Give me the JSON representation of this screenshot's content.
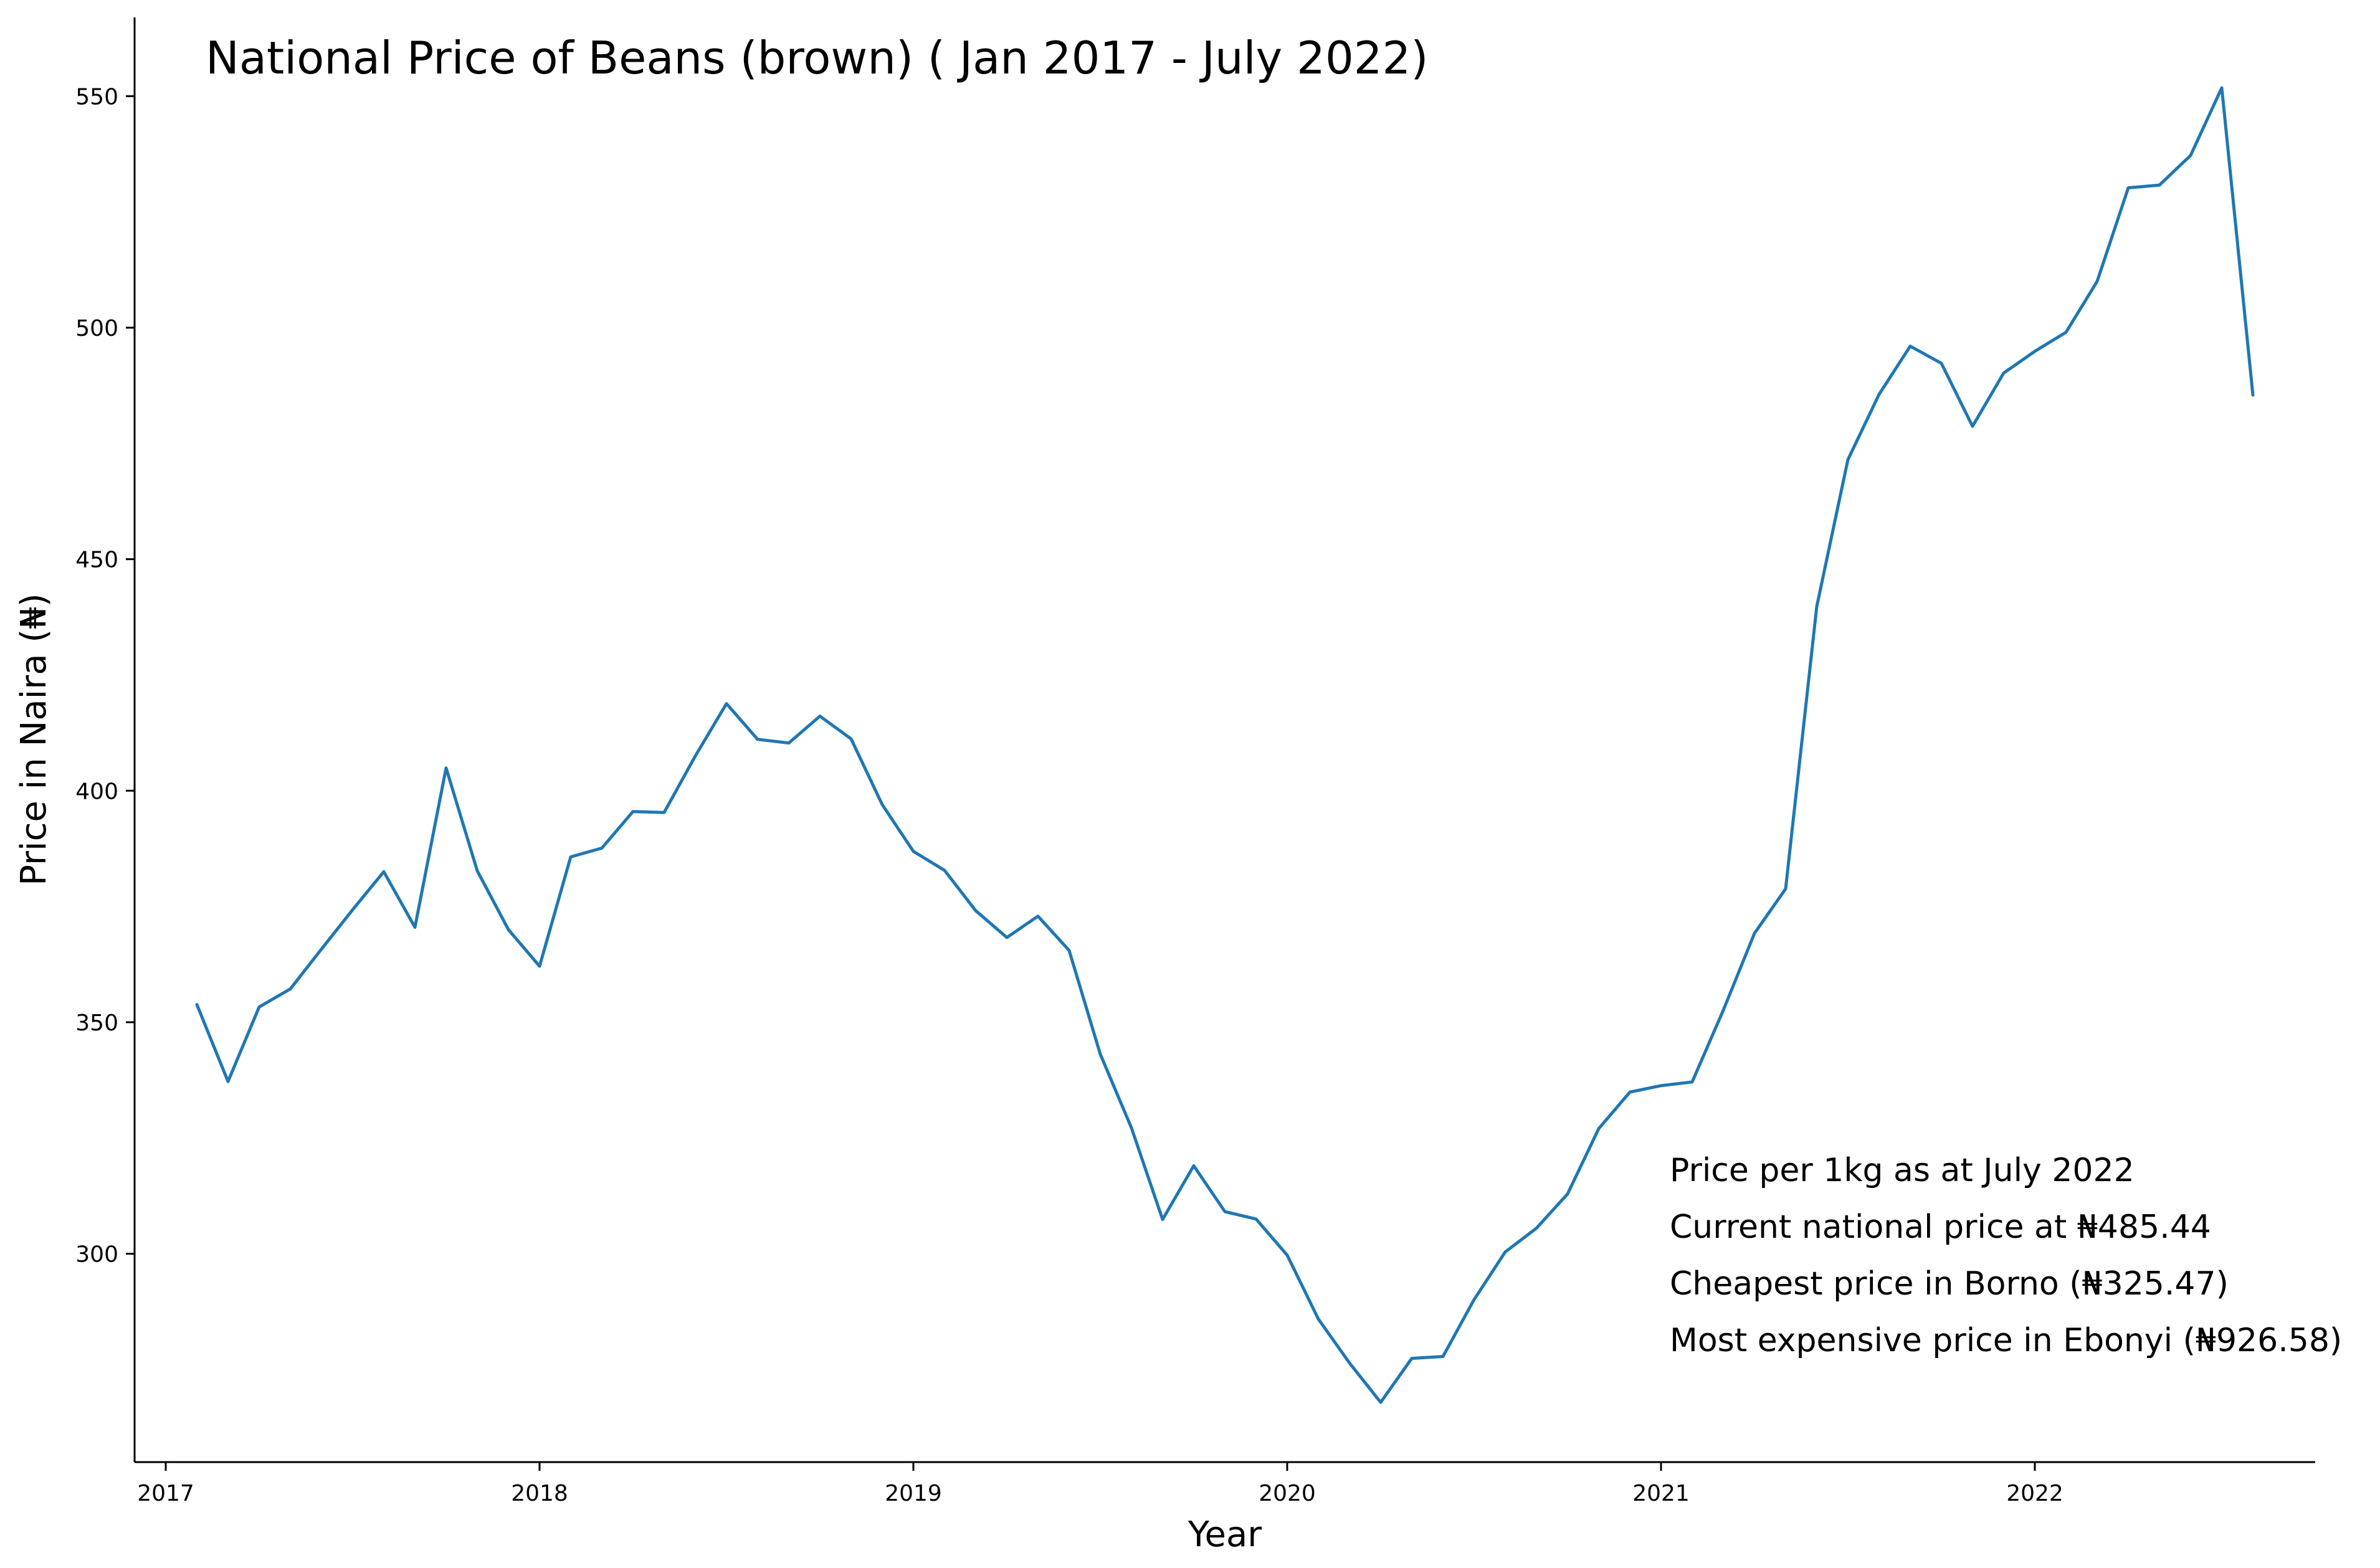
{
  "chart_data": {
    "type": "line",
    "title": "National Price of Beans (brown) ( Jan 2017 - July 2022)",
    "xlabel": "Year",
    "ylabel": "Price in Naira (₦)",
    "x_ticks": [
      "2017",
      "2018",
      "2019",
      "2020",
      "2021",
      "2022"
    ],
    "y_ticks": [
      300,
      350,
      400,
      450,
      500,
      550
    ],
    "xlim": [
      "2016-12",
      "2022-10"
    ],
    "ylim": [
      255,
      567
    ],
    "grid": false,
    "color": "#1f77b4",
    "x": [
      "2017-01",
      "2017-02",
      "2017-03",
      "2017-04",
      "2017-05",
      "2017-06",
      "2017-07",
      "2017-08",
      "2017-09",
      "2017-10",
      "2017-11",
      "2017-12",
      "2018-01",
      "2018-02",
      "2018-03",
      "2018-04",
      "2018-05",
      "2018-06",
      "2018-07",
      "2018-08",
      "2018-09",
      "2018-10",
      "2018-11",
      "2018-12",
      "2019-01",
      "2019-02",
      "2019-03",
      "2019-04",
      "2019-05",
      "2019-06",
      "2019-07",
      "2019-08",
      "2019-09",
      "2019-10",
      "2019-11",
      "2019-12",
      "2020-01",
      "2020-02",
      "2020-03",
      "2020-04",
      "2020-05",
      "2020-06",
      "2020-07",
      "2020-08",
      "2020-09",
      "2020-10",
      "2020-11",
      "2020-12",
      "2021-01",
      "2021-02",
      "2021-03",
      "2021-04",
      "2021-05",
      "2021-06",
      "2021-07",
      "2021-08",
      "2021-09",
      "2021-10",
      "2021-11",
      "2021-12",
      "2022-01",
      "2022-02",
      "2022-03",
      "2022-04",
      "2022-05",
      "2022-06",
      "2022-07"
    ],
    "values": [
      353.8,
      337.2,
      353.3,
      357.2,
      365.8,
      374.3,
      382.5,
      370.5,
      404.9,
      382.7,
      370.0,
      362.1,
      385.7,
      387.6,
      395.5,
      395.3,
      407.5,
      418.8,
      411.1,
      410.3,
      416.1,
      411.2,
      397.0,
      386.9,
      382.8,
      374.1,
      368.3,
      372.9,
      365.5,
      343.1,
      327.2,
      307.4,
      319.0,
      309.1,
      307.5,
      299.7,
      285.9,
      276.4,
      267.9,
      277.4,
      277.8,
      290.1,
      300.4,
      305.5,
      312.9,
      327.0,
      334.9,
      336.3,
      337.1,
      352.6,
      369.2,
      378.8,
      439.8,
      471.5,
      485.6,
      496.0,
      492.3,
      478.7,
      490.2,
      494.9,
      499.0,
      510.0,
      530.2,
      530.8,
      537.2,
      551.8,
      485.44
    ],
    "annotations": [
      "Price per 1kg as at July 2022",
      "Current national price at ₦485.44",
      "Cheapest price in Borno (₦325.47)",
      "Most expensive price in Ebonyi (₦926.58)"
    ]
  }
}
